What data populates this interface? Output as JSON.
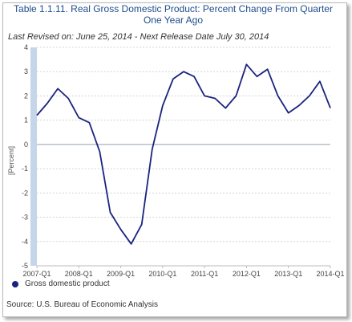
{
  "chart_data": {
    "type": "line",
    "title": "Table 1.1.11. Real Gross Domestic Product: Percent Change From Quarter One Year Ago",
    "subtitle": "Last Revised on: June 25, 2014 - Next Release Date July 30, 2014",
    "ylabel": "[Percent]",
    "xlabel": "",
    "ylim": [
      -5,
      4
    ],
    "yticks": [
      -5,
      -4,
      -3,
      -2,
      -1,
      0,
      1,
      2,
      3,
      4
    ],
    "xtick_labels": [
      "2007-Q1",
      "2008-Q1",
      "2009-Q1",
      "2010-Q1",
      "2011-Q1",
      "2012-Q1",
      "2013-Q1",
      "2014-Q1"
    ],
    "grid": "horizontal-dashed",
    "legend": "bottom-left",
    "series": [
      {
        "name": "Gross domestic product",
        "color": "#1a237e",
        "x": [
          "2007-Q1",
          "2007-Q2",
          "2007-Q3",
          "2007-Q4",
          "2008-Q1",
          "2008-Q2",
          "2008-Q3",
          "2008-Q4",
          "2009-Q1",
          "2009-Q2",
          "2009-Q3",
          "2009-Q4",
          "2010-Q1",
          "2010-Q2",
          "2010-Q3",
          "2010-Q4",
          "2011-Q1",
          "2011-Q2",
          "2011-Q3",
          "2011-Q4",
          "2012-Q1",
          "2012-Q2",
          "2012-Q3",
          "2012-Q4",
          "2013-Q1",
          "2013-Q2",
          "2013-Q3",
          "2013-Q4",
          "2014-Q1"
        ],
        "values": [
          1.2,
          1.7,
          2.3,
          1.9,
          1.1,
          0.9,
          -0.3,
          -2.8,
          -3.5,
          -4.1,
          -3.3,
          -0.2,
          1.6,
          2.7,
          3.0,
          2.8,
          2.0,
          1.9,
          1.5,
          2.0,
          3.3,
          2.8,
          3.1,
          2.0,
          1.3,
          1.6,
          2.0,
          2.6,
          1.5
        ]
      }
    ],
    "source": "Source: U.S. Bureau of Economic Analysis"
  }
}
